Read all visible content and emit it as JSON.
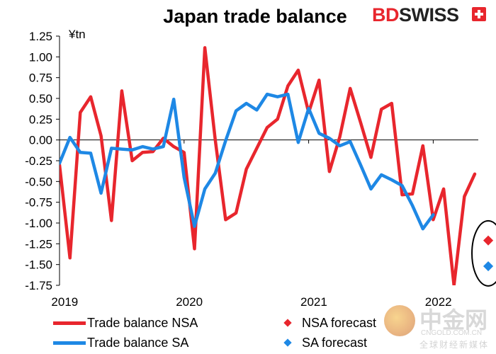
{
  "brand": {
    "part1": "BD",
    "part2": "SWISS"
  },
  "watermark": {
    "text": "中金网",
    "domain": "CNGOLD.COM.CN",
    "tag": "全球财经新媒体"
  },
  "chart_data": {
    "type": "line",
    "title": "Japan trade balance",
    "ylabel": "¥tn",
    "xlabel": "",
    "ylim": [
      -1.75,
      1.25
    ],
    "yticks": [
      "1.25",
      "1.00",
      "0.75",
      "0.50",
      "0.25",
      "0.00",
      "-0.25",
      "-0.50",
      "-0.75",
      "-1.00",
      "-1.25",
      "-1.50",
      "-1.75"
    ],
    "xtick_labels": [
      "2019",
      "2020",
      "2021",
      "2022"
    ],
    "x_start": "2019-01",
    "series": [
      {
        "name": "Trade balance NSA",
        "color": "#e8262d",
        "values": [
          -0.3,
          -1.42,
          0.33,
          0.52,
          0.05,
          -0.97,
          0.59,
          -0.25,
          -0.15,
          -0.14,
          0.02,
          -0.08,
          -0.15,
          -1.31,
          1.11,
          0.0,
          -0.96,
          -0.88,
          -0.35,
          -0.1,
          0.15,
          0.25,
          0.65,
          0.84,
          0.33,
          0.72,
          -0.38,
          0.04,
          0.62,
          0.21,
          -0.21,
          0.37,
          0.44,
          -0.66,
          -0.65,
          -0.07,
          -0.96,
          -0.59,
          -1.75,
          -0.68,
          -0.41
        ]
      },
      {
        "name": "Trade balance SA",
        "color": "#1e88e5",
        "values": [
          -0.28,
          0.03,
          -0.15,
          -0.16,
          -0.64,
          -0.1,
          -0.11,
          -0.12,
          -0.08,
          -0.11,
          -0.08,
          0.49,
          -0.45,
          -1.04,
          -0.59,
          -0.4,
          -0.01,
          0.35,
          0.44,
          0.36,
          0.55,
          0.52,
          0.55,
          -0.03,
          0.38,
          0.08,
          0.02,
          -0.07,
          -0.02,
          -0.3,
          -0.59,
          -0.42,
          -0.48,
          -0.55,
          -0.79,
          -1.07,
          -0.9
        ]
      }
    ],
    "forecasts": [
      {
        "name": "NSA forecast",
        "color": "#e8262d",
        "value": -1.21
      },
      {
        "name": "SA forecast",
        "color": "#1e88e5",
        "value": -1.52
      }
    ],
    "grid": false,
    "legend_position": "bottom"
  }
}
